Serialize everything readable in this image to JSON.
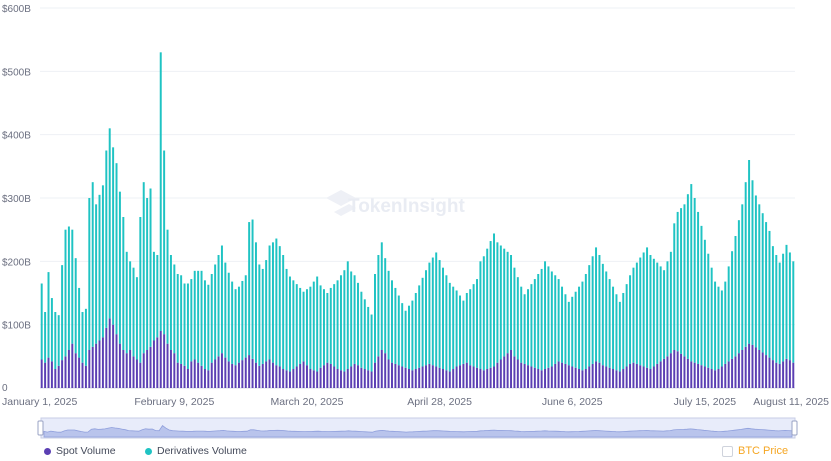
{
  "chart_data": {
    "type": "bar",
    "stacked": true,
    "y_ticks": [
      "$600B",
      "$500B",
      "$400B",
      "$300B",
      "$200B",
      "$100B",
      "0"
    ],
    "y_tick_values": [
      600,
      500,
      400,
      300,
      200,
      100,
      0
    ],
    "ylim": [
      0,
      600
    ],
    "x_ticks": [
      "January 1, 2025",
      "February 9, 2025",
      "March 20, 2025",
      "April 28, 2025",
      "June 6, 2025",
      "July 15, 2025",
      "August 11, 2025"
    ],
    "x_tick_day_index": [
      0,
      39,
      78,
      117,
      156,
      195,
      222
    ],
    "grid": true,
    "legend_position": "bottom-left",
    "series": [
      {
        "name": "Spot Volume",
        "color": "#5b3fb3",
        "values": [
          45,
          40,
          48,
          42,
          30,
          35,
          44,
          50,
          60,
          70,
          55,
          48,
          40,
          35,
          60,
          65,
          70,
          75,
          80,
          95,
          110,
          100,
          85,
          70,
          60,
          55,
          60,
          50,
          45,
          40,
          55,
          60,
          65,
          75,
          80,
          90,
          85,
          70,
          60,
          55,
          40,
          38,
          35,
          30,
          42,
          45,
          40,
          35,
          30,
          28,
          40,
          45,
          50,
          55,
          48,
          42,
          38,
          36,
          40,
          44,
          48,
          52,
          46,
          40,
          35,
          38,
          42,
          45,
          40,
          36,
          34,
          30,
          28,
          26,
          30,
          34,
          38,
          42,
          36,
          30,
          28,
          26,
          32,
          36,
          40,
          38,
          34,
          30,
          28,
          26,
          30,
          34,
          38,
          36,
          32,
          30,
          28,
          26,
          40,
          50,
          60,
          55,
          45,
          40,
          38,
          36,
          34,
          32,
          30,
          28,
          30,
          32,
          34,
          36,
          38,
          36,
          34,
          32,
          30,
          28,
          26,
          30,
          34,
          36,
          38,
          40,
          36,
          34,
          32,
          30,
          28,
          30,
          32,
          34,
          40,
          45,
          50,
          55,
          60,
          50,
          45,
          40,
          38,
          36,
          34,
          32,
          30,
          28,
          30,
          32,
          34,
          38,
          42,
          40,
          38,
          36,
          34,
          32,
          30,
          28,
          30,
          34,
          38,
          42,
          40,
          36,
          34,
          32,
          30,
          28,
          26,
          30,
          34,
          38,
          40,
          38,
          36,
          34,
          32,
          30,
          34,
          38,
          42,
          46,
          50,
          55,
          60,
          58,
          54,
          50,
          46,
          42,
          40,
          38,
          36,
          34,
          32,
          30,
          28,
          30,
          34,
          38,
          42,
          46,
          50,
          55,
          60,
          65,
          70,
          68,
          64,
          60,
          56,
          52,
          48,
          44,
          40,
          38,
          42,
          46,
          44,
          40
        ],
        "note": "daily spot volume in $B"
      },
      {
        "name": "Derivatives Volume",
        "color": "#1fc3c3",
        "values": [
          120,
          80,
          135,
          100,
          90,
          80,
          150,
          200,
          195,
          180,
          150,
          110,
          80,
          90,
          240,
          260,
          220,
          230,
          240,
          280,
          300,
          280,
          270,
          240,
          210,
          160,
          140,
          140,
          130,
          230,
          270,
          240,
          250,
          140,
          130,
          440,
          290,
          180,
          150,
          140,
          140,
          140,
          130,
          135,
          130,
          140,
          145,
          150,
          140,
          135,
          140,
          150,
          160,
          170,
          150,
          140,
          130,
          120,
          120,
          125,
          130,
          210,
          220,
          190,
          160,
          150,
          160,
          180,
          190,
          200,
          190,
          180,
          160,
          150,
          140,
          130,
          120,
          110,
          120,
          130,
          140,
          150,
          130,
          120,
          110,
          120,
          130,
          140,
          150,
          160,
          170,
          150,
          140,
          130,
          120,
          110,
          100,
          90,
          140,
          160,
          170,
          150,
          140,
          130,
          120,
          110,
          100,
          90,
          100,
          110,
          120,
          130,
          140,
          150,
          160,
          170,
          180,
          170,
          160,
          150,
          140,
          130,
          120,
          110,
          100,
          110,
          120,
          130,
          140,
          170,
          180,
          190,
          200,
          210,
          190,
          180,
          170,
          160,
          150,
          140,
          130,
          120,
          110,
          120,
          130,
          140,
          150,
          160,
          170,
          160,
          150,
          140,
          130,
          120,
          110,
          100,
          110,
          120,
          130,
          140,
          150,
          160,
          170,
          180,
          170,
          160,
          150,
          140,
          130,
          120,
          110,
          120,
          130,
          140,
          150,
          160,
          170,
          180,
          190,
          180,
          170,
          160,
          150,
          140,
          150,
          160,
          200,
          220,
          230,
          240,
          260,
          280,
          260,
          240,
          220,
          200,
          180,
          160,
          140,
          130,
          120,
          130,
          150,
          170,
          190,
          210,
          230,
          260,
          290,
          260,
          240,
          230,
          220,
          210,
          200,
          180,
          170,
          160,
          170,
          180,
          170,
          160
        ],
        "note": "daily derivatives volume in $B"
      }
    ],
    "btc_price_label": "BTC Price"
  }
}
